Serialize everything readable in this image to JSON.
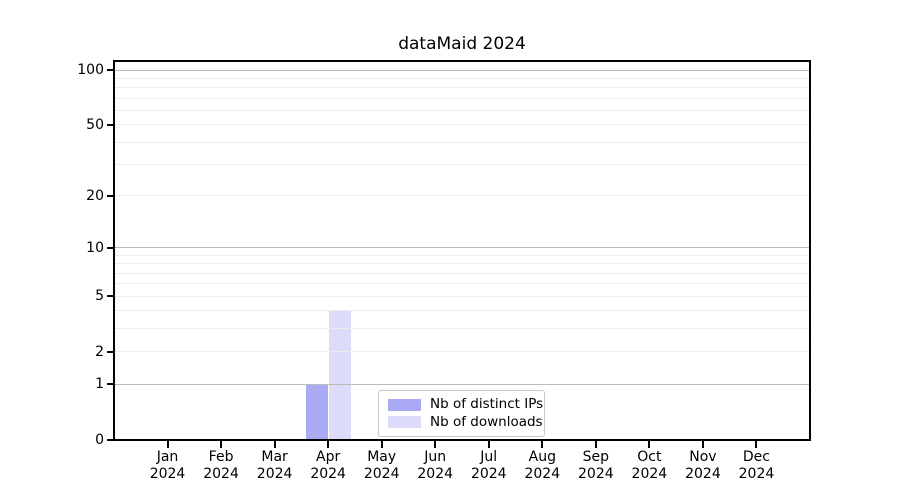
{
  "chart_data": {
    "type": "bar",
    "title": "dataMaid 2024",
    "categories": [
      "Jan",
      "Feb",
      "Mar",
      "Apr",
      "May",
      "Jun",
      "Jul",
      "Aug",
      "Sep",
      "Oct",
      "Nov",
      "Dec"
    ],
    "category_year": "2024",
    "series": [
      {
        "name": "Nb of distinct IPs",
        "color": "#a9a9f4",
        "values": [
          0,
          0,
          0,
          1,
          0,
          0,
          0,
          0,
          0,
          0,
          0,
          0
        ]
      },
      {
        "name": "Nb of downloads",
        "color": "#dcdcfa",
        "values": [
          0,
          0,
          0,
          4,
          0,
          0,
          0,
          0,
          0,
          0,
          0,
          0
        ]
      }
    ],
    "xlabel": "",
    "ylabel": "",
    "yscale": "log1p",
    "ylim": [
      0,
      112
    ],
    "y_tick_values": [
      0,
      1,
      2,
      5,
      10,
      20,
      50,
      100
    ],
    "y_major_gridlines": [
      1,
      10,
      100
    ],
    "y_minor_gridlines": [
      2,
      3,
      4,
      5,
      6,
      7,
      8,
      9,
      20,
      30,
      40,
      50,
      60,
      70,
      80,
      90
    ],
    "grid": "horizontal",
    "legend": {
      "position": "bottom-center-inside",
      "entries": [
        "Nb of distinct IPs",
        "Nb of downloads"
      ]
    },
    "colors": {
      "frame": "#000000",
      "major_grid": "#bbbbbb",
      "minor_grid": "#ededed",
      "background": "#ffffff",
      "text": "#000000"
    }
  }
}
